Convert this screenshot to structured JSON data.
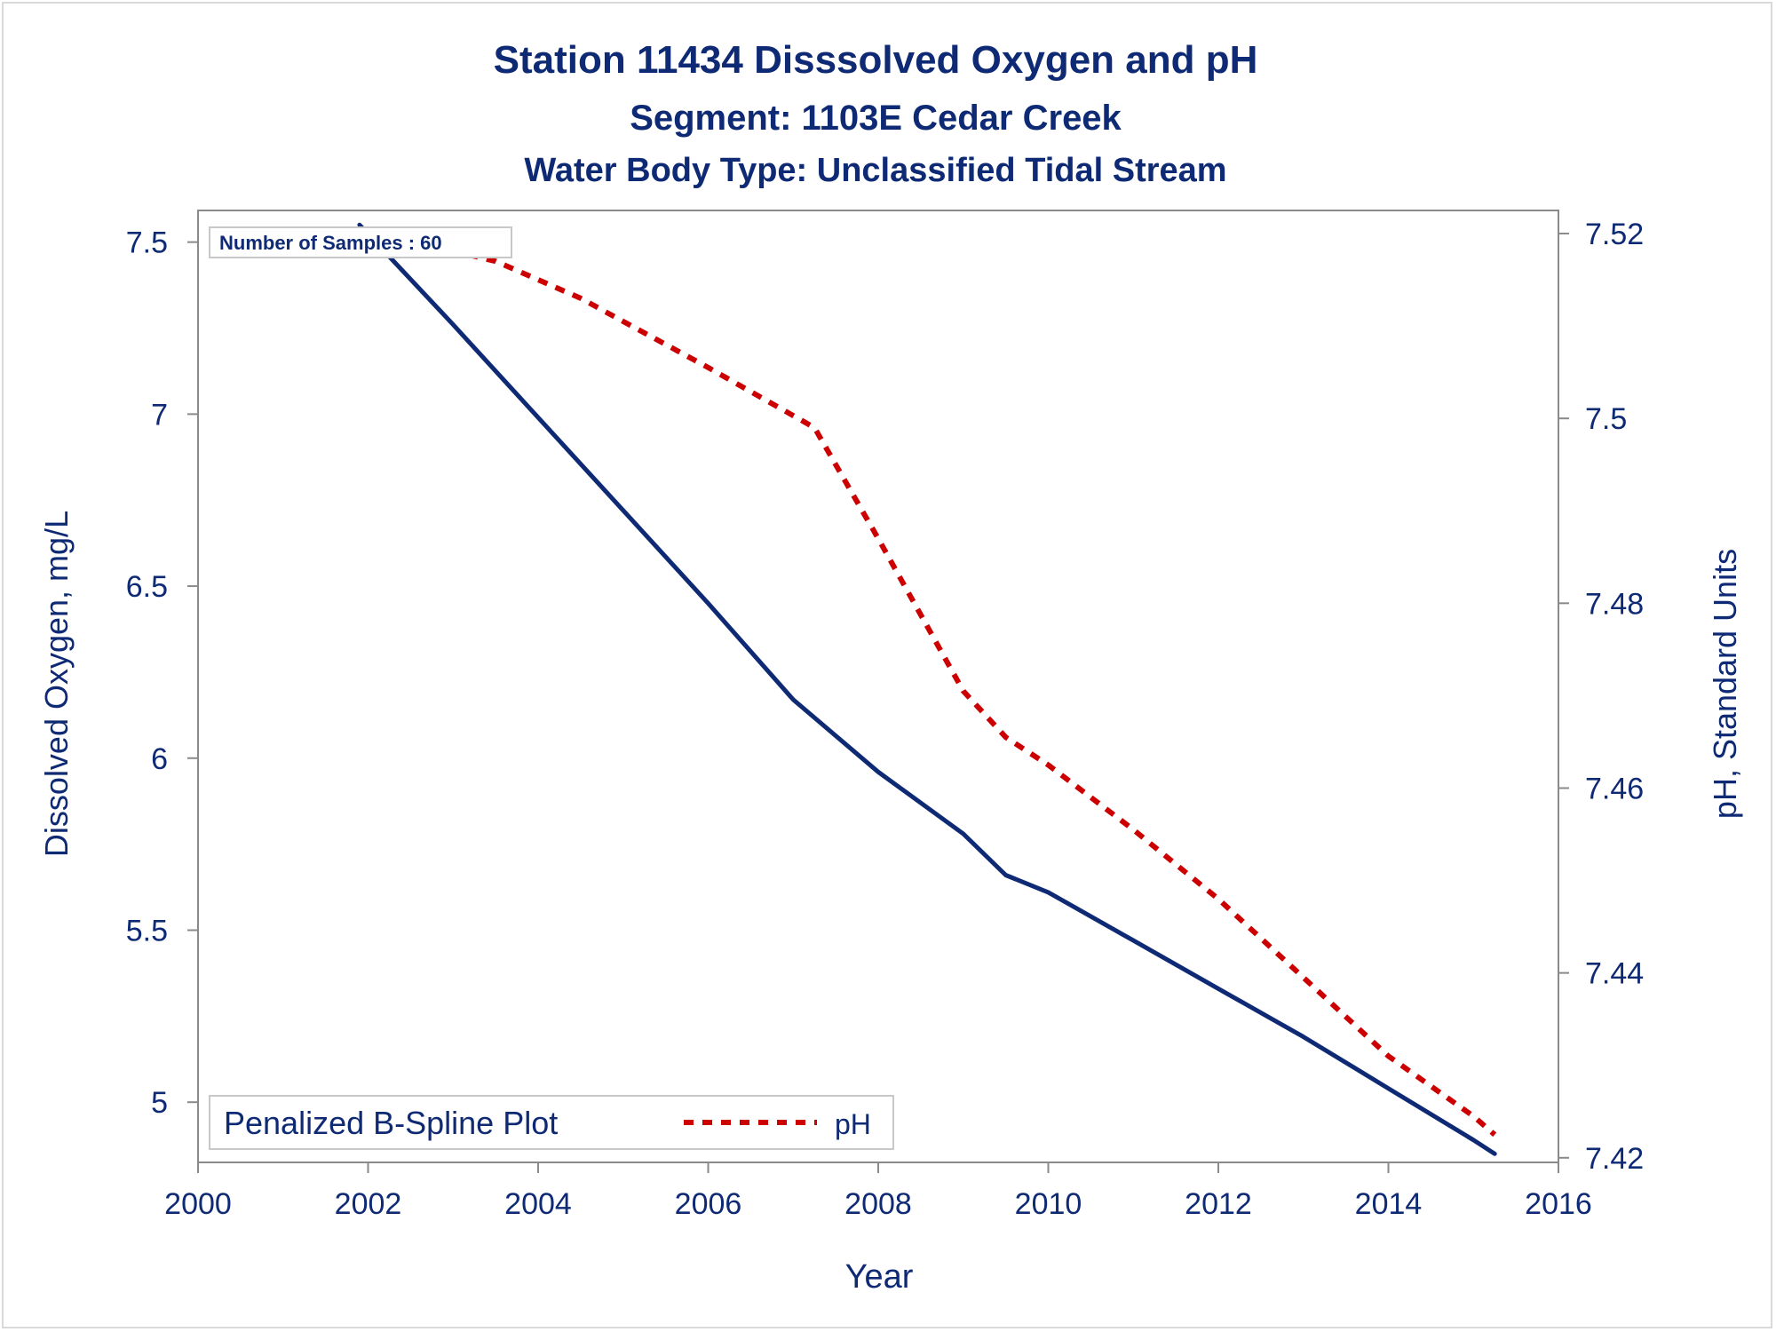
{
  "chart_data": {
    "type": "line",
    "title": "Station 11434   Disssolved Oxygen and pH",
    "subtitle": "Segment: 1103E  Cedar Creek",
    "subtitle2": "Water Body Type: Unclassified Tidal Stream",
    "xlabel": "Year",
    "ylabel": "Dissolved Oxygen, mg/L",
    "y2label": "pH, Standard Units",
    "xlim": [
      2000,
      2016
    ],
    "ylim": [
      4.825,
      7.592
    ],
    "y2lim": [
      7.4195,
      7.5225
    ],
    "xticks": [
      "2000",
      "2002",
      "2004",
      "2006",
      "2008",
      "2010",
      "2012",
      "2014",
      "2016"
    ],
    "yticks": [
      "5",
      "5.5",
      "6",
      "6.5",
      "7",
      "7.5"
    ],
    "y2ticks": [
      "7.42",
      "7.44",
      "7.46",
      "7.48",
      "7.5",
      "7.52"
    ],
    "annotation": "Number of Samples : 60",
    "legend": {
      "position": "bottom-left",
      "title": "Penalized B-Spline Plot",
      "entries": [
        "pH"
      ]
    },
    "series": [
      {
        "name": "Dissolved Oxygen",
        "axis": "left",
        "color": "#0f2a74",
        "style": "solid",
        "x": [
          2001.9,
          2003.0,
          2004.0,
          2005.0,
          2006.0,
          2007.0,
          2008.0,
          2009.0,
          2009.5,
          2010.0,
          2011.0,
          2012.0,
          2013.0,
          2014.0,
          2015.0,
          2015.25
        ],
        "y": [
          7.55,
          7.26,
          6.99,
          6.72,
          6.45,
          6.17,
          5.96,
          5.78,
          5.66,
          5.61,
          5.47,
          5.33,
          5.19,
          5.04,
          4.89,
          4.85
        ]
      },
      {
        "name": "pH",
        "axis": "right",
        "color": "#cc0000",
        "style": "dashed",
        "x": [
          2001.9,
          2003.5,
          2004.5,
          2006.0,
          2007.25,
          2008.0,
          2009.0,
          2009.5,
          2010.0,
          2011.0,
          2012.0,
          2013.0,
          2014.0,
          2015.0,
          2015.25
        ],
        "y": [
          7.5205,
          7.517,
          7.513,
          7.5055,
          7.499,
          7.487,
          7.4705,
          7.4655,
          7.4625,
          7.4555,
          7.448,
          7.4395,
          7.431,
          7.4245,
          7.4225
        ]
      }
    ]
  }
}
